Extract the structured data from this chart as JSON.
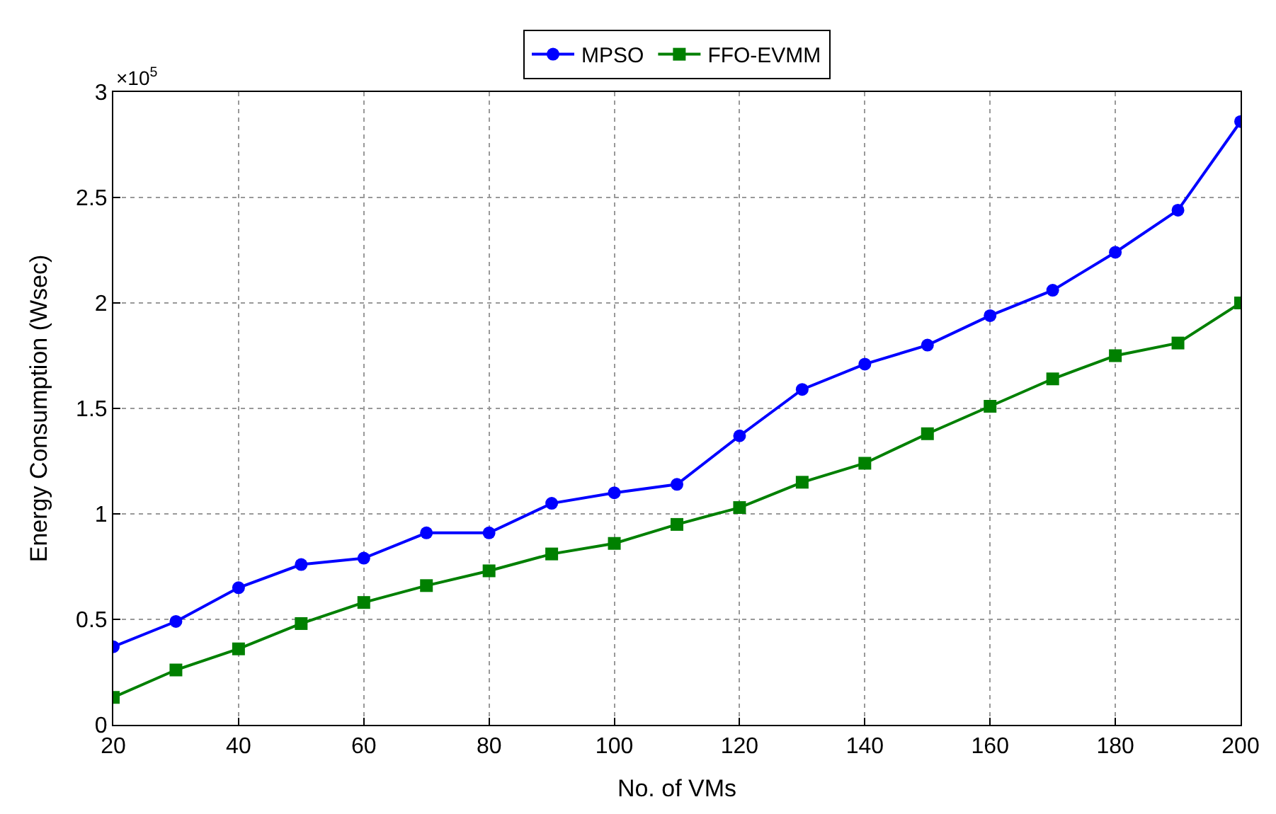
{
  "chart_data": {
    "type": "line",
    "xlabel": "No. of VMs",
    "ylabel": "Energy Consumption (Wsec)",
    "annotations": [
      "×10$^{5}$"
    ],
    "x": [
      20,
      30,
      40,
      50,
      60,
      70,
      80,
      90,
      100,
      110,
      120,
      130,
      140,
      150,
      160,
      170,
      180,
      190,
      200
    ],
    "series": [
      {
        "name": "MPSO",
        "color": "#0000ff",
        "marker": "circle",
        "values": [
          0.37,
          0.49,
          0.65,
          0.76,
          0.79,
          0.91,
          0.91,
          1.05,
          1.1,
          1.14,
          1.37,
          1.59,
          1.71,
          1.8,
          1.94,
          2.06,
          2.24,
          2.44,
          2.86
        ]
      },
      {
        "name": "FFO-EVMM",
        "color": "#008000",
        "marker": "square",
        "values": [
          0.13,
          0.26,
          0.36,
          0.48,
          0.58,
          0.66,
          0.73,
          0.81,
          0.86,
          0.95,
          1.03,
          1.15,
          1.24,
          1.38,
          1.51,
          1.64,
          1.75,
          1.81,
          2.0
        ]
      }
    ],
    "xlim": [
      20,
      200
    ],
    "xticks": [
      20,
      40,
      60,
      80,
      100,
      120,
      140,
      160,
      180,
      200
    ],
    "ylim": [
      0,
      3
    ],
    "yticks": [
      0,
      0.5,
      1,
      1.5,
      2,
      2.5,
      3
    ],
    "grid": true,
    "legend": "top",
    "line_style": "solid"
  }
}
